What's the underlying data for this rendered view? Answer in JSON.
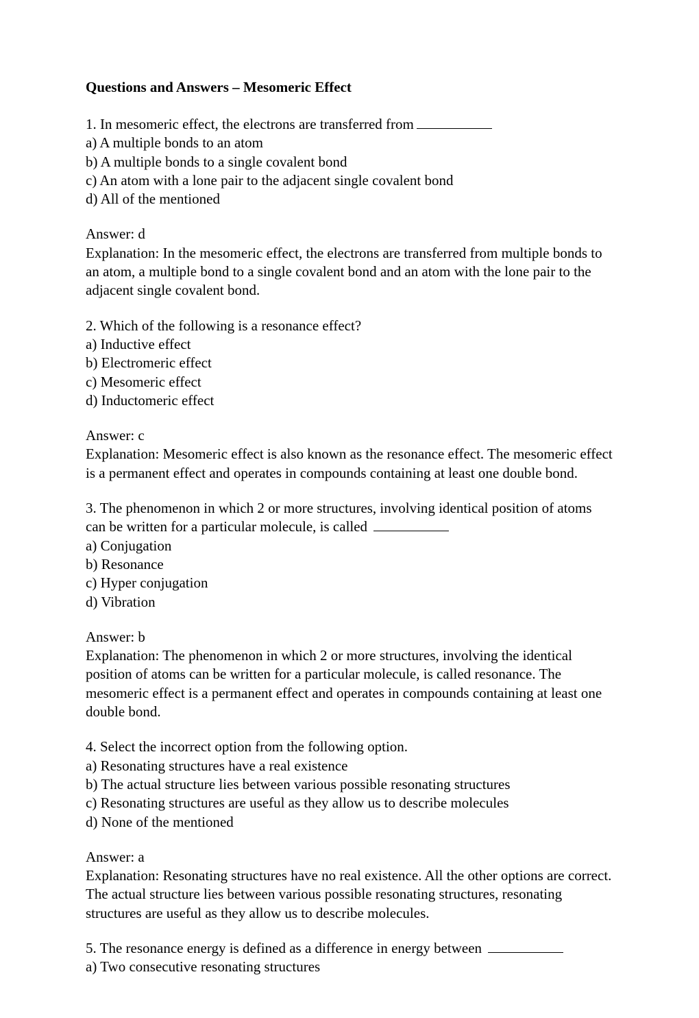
{
  "title": "Questions and Answers – Mesomeric Effect",
  "questions": [
    {
      "q": "1. In mesomeric effect, the electrons are transferred from",
      "blank": true,
      "opts": {
        "a": "a) A multiple bonds to an atom",
        "b": "b) A multiple bonds to a single covalent bond",
        "c": "c) An atom with a lone pair to the adjacent single covalent bond",
        "d": "d) All of the mentioned"
      },
      "answer": "Answer: d",
      "explanation": "Explanation: In the mesomeric effect, the electrons are transferred from multiple bonds to an atom, a multiple bond to a single covalent bond and an atom with the lone pair to the adjacent single covalent bond."
    },
    {
      "q": "2. Which of the following is a resonance effect?",
      "blank": false,
      "opts": {
        "a": "a) Inductive effect",
        "b": "b) Electromeric effect",
        "c": "c) Mesomeric effect",
        "d": "d) Inductomeric effect"
      },
      "answer": "Answer: c",
      "explanation": "Explanation: Mesomeric effect is also known as the resonance effect. The mesomeric effect is a permanent effect and operates in compounds containing at least one double bond."
    },
    {
      "q": "3. The phenomenon in which 2 or more structures, involving identical position of atoms can be written for a particular molecule, is called",
      "blank": true,
      "opts": {
        "a": "a) Conjugation",
        "b": "b) Resonance",
        "c": "c) Hyper conjugation",
        "d": "d) Vibration"
      },
      "answer": "Answer: b",
      "explanation": "Explanation: The phenomenon in which 2 or more structures, involving the identical position of atoms can be written for a particular molecule, is called resonance. The mesomeric effect is a permanent effect and operates in compounds containing at least one double bond."
    },
    {
      "q": "4. Select the incorrect option from the following option.",
      "blank": false,
      "opts": {
        "a": "a) Resonating structures have a real existence",
        "b": "b) The actual structure lies between various possible resonating structures",
        "c": "c) Resonating structures are useful as they allow us to describe molecules",
        "d": "d) None of the mentioned"
      },
      "answer": "Answer: a",
      "explanation": "Explanation: Resonating structures have no real existence. All the other options are correct. The actual structure lies between various possible resonating structures, resonating structures are useful as they allow us to describe molecules."
    },
    {
      "q": "5. The resonance energy is defined as a difference in energy between",
      "blank": true,
      "opts": {
        "a": "a) Two consecutive resonating structures"
      },
      "partial": true
    }
  ]
}
